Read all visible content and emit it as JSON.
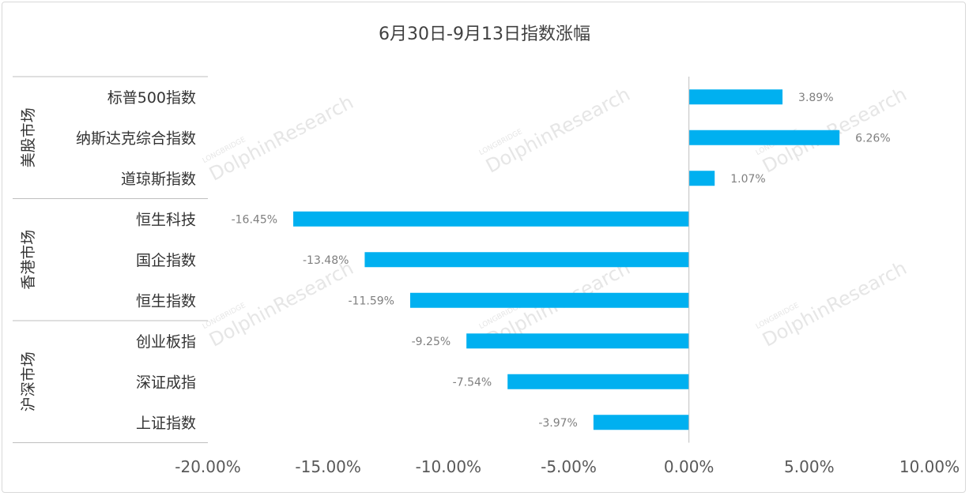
{
  "chart_data": {
    "type": "bar",
    "orientation": "horizontal",
    "title": "6月30日-9月13日指数涨幅",
    "groups": [
      {
        "name": "美股市场",
        "categories": [
          "标普500指数",
          "纳斯达克综合指数",
          "道琼斯指数"
        ]
      },
      {
        "name": "香港市场",
        "categories": [
          "恒生科技",
          "国企指数",
          "恒生指数"
        ]
      },
      {
        "name": "沪深市场",
        "categories": [
          "创业板指",
          "深证成指",
          "上证指数"
        ]
      }
    ],
    "categories": [
      "标普500指数",
      "纳斯达克综合指数",
      "道琼斯指数",
      "恒生科技",
      "国企指数",
      "恒生指数",
      "创业板指",
      "深证成指",
      "上证指数"
    ],
    "values": [
      3.89,
      6.26,
      1.07,
      -16.45,
      -13.48,
      -11.59,
      -9.25,
      -7.54,
      -3.97
    ],
    "data_labels": [
      "3.89%",
      "6.26%",
      "1.07%",
      "-16.45%",
      "-13.48%",
      "-11.59%",
      "-9.25%",
      "-7.54%",
      "-3.97%"
    ],
    "xlim": [
      -20,
      10
    ],
    "x_ticks": [
      -20,
      -15,
      -10,
      -5,
      0,
      5,
      10
    ],
    "x_tick_labels": [
      "-20.00%",
      "-15.00%",
      "-10.00%",
      "-5.00%",
      "0.00%",
      "5.00%",
      "10.00%"
    ],
    "bar_color": "#00b0f0",
    "grid": false,
    "legend": "none"
  },
  "watermark": {
    "brand": "LONGBRIDGE",
    "text": "DolphinResearch"
  }
}
